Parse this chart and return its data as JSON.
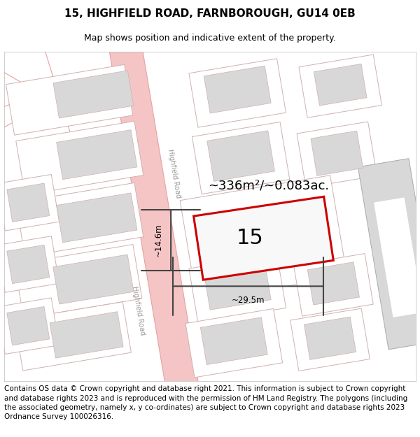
{
  "title": "15, HIGHFIELD ROAD, FARNBOROUGH, GU14 0EB",
  "subtitle": "Map shows position and indicative extent of the property.",
  "footer": "Contains OS data © Crown copyright and database right 2021. This information is subject to Crown copyright and database rights 2023 and is reproduced with the permission of HM Land Registry. The polygons (including the associated geometry, namely x, y co-ordinates) are subject to Crown copyright and database rights 2023 Ordnance Survey 100026316.",
  "road_color": "#f5c5c5",
  "road_edge_color": "#e8a0a0",
  "building_fill": "#d8d8d8",
  "building_edge": "#c0a0a0",
  "plot_outline_color": "#d0b0b0",
  "highlight_color": "#cc0000",
  "highlight_fill": "#f8f8f8",
  "meas_color": "#444444",
  "road_label": "Highfield Road",
  "area_label": "~336m²/~0.083ac.",
  "width_label": "~29.5m",
  "height_label": "~14.6m",
  "plot_number": "15",
  "title_fontsize": 11,
  "subtitle_fontsize": 9,
  "footer_fontsize": 7.5
}
